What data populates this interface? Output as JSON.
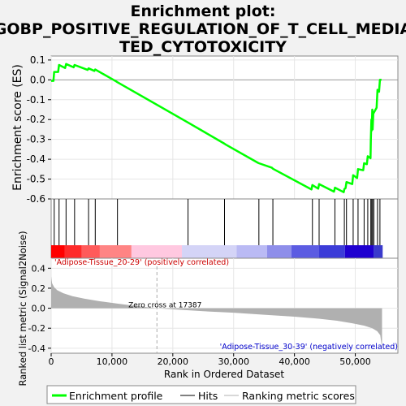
{
  "chart_data": {
    "type": "line",
    "title": "Enrichment plot: GOBP_POSITIVE_REGULATION_OF_T_CELL_MEDIATED_CYTOTOXICITY",
    "title_lines": [
      "Enrichment plot:",
      "GOBP_POSITIVE_REGULATION_OF_T_CELL_MEDIA",
      "TED_CYTOTOXICITY"
    ],
    "xlabel": "Rank in Ordered Dataset",
    "xlim": [
      0,
      57000
    ],
    "x_ticks": [
      0,
      10000,
      20000,
      30000,
      40000,
      50000
    ],
    "x_tick_labels": [
      "0",
      "10,000",
      "20,000",
      "30,000",
      "40,000",
      "50,000"
    ],
    "es_panel": {
      "ylabel": "Enrichment score (ES)",
      "ylim": [
        -0.6,
        0.12
      ],
      "y_ticks": [
        0.1,
        0.0,
        -0.1,
        -0.2,
        -0.3,
        -0.4,
        -0.5,
        -0.6
      ],
      "y_tick_labels": [
        "0.1",
        "0.0",
        "-0.1",
        "-0.2",
        "-0.3",
        "-0.4",
        "-0.5",
        "-0.6"
      ],
      "series": [
        {
          "name": "Enrichment profile",
          "color": "#00ff00",
          "x": [
            0,
            380,
            500,
            1150,
            1300,
            2300,
            2450,
            3700,
            3850,
            6000,
            6150,
            7100,
            7250,
            10700,
            10900,
            22500,
            28500,
            28650,
            34000,
            34150,
            36300,
            36450,
            42800,
            42950,
            43900,
            44050,
            46500,
            46650,
            48100,
            48200,
            48400,
            48550,
            49500,
            49650,
            50300,
            50450,
            51300,
            51450,
            51900,
            52050,
            52500,
            52550,
            52650,
            52700,
            52800,
            52850,
            52950,
            53050,
            53500,
            53650,
            53900,
            54050,
            54300
          ],
          "y": [
            -0.005,
            -0.005,
            0.04,
            0.04,
            0.075,
            0.06,
            0.08,
            0.063,
            0.075,
            0.05,
            0.058,
            0.045,
            0.052,
            -0.008,
            -0.012,
            -0.215,
            -0.322,
            -0.325,
            -0.418,
            -0.42,
            -0.443,
            -0.448,
            -0.552,
            -0.53,
            -0.548,
            -0.525,
            -0.563,
            -0.543,
            -0.566,
            -0.55,
            -0.545,
            -0.515,
            -0.525,
            -0.48,
            -0.495,
            -0.45,
            -0.455,
            -0.42,
            -0.425,
            -0.385,
            -0.395,
            -0.3,
            -0.2,
            -0.255,
            -0.15,
            -0.25,
            -0.17,
            -0.165,
            -0.14,
            -0.05,
            -0.06,
            0.0,
            0.0
          ]
        }
      ]
    },
    "hits": {
      "name": "Hits",
      "color": "#000000",
      "x": [
        500,
        1300,
        2450,
        3850,
        6150,
        7250,
        10900,
        22500,
        28500,
        34150,
        36450,
        42950,
        44050,
        46650,
        48200,
        48550,
        49650,
        50450,
        51450,
        52050,
        52550,
        52700,
        52850,
        53050,
        53650,
        54050
      ]
    },
    "metric_panel": {
      "ylabel": "Ranked list metric (Signal2Noise)",
      "ylim": [
        -0.45,
        0.5
      ],
      "y_ticks": [
        0.4,
        0.2,
        0.0,
        -0.2,
        -0.4
      ],
      "y_tick_labels": [
        "0.4",
        "0.2",
        "0.0",
        "-0.2",
        "-0.4"
      ],
      "zero_cross": 17387,
      "zero_cross_label": "Zero cross at 17387",
      "positive_label": "'Adipose-Tissue_20-29' (positively correlated)",
      "negative_label": "'Adipose-Tissue_30-39' (negatively correlated)",
      "metric_curve": {
        "name": "Ranking metric scores",
        "color": "#b0b0b0",
        "x": [
          0,
          150,
          500,
          1000,
          2000,
          3500,
          5500,
          8000,
          11000,
          14000,
          17387,
          21000,
          25000,
          30000,
          35000,
          40000,
          44000,
          47000,
          49500,
          51500,
          52800,
          53600,
          54100,
          54400
        ],
        "y": [
          0.32,
          0.25,
          0.21,
          0.18,
          0.15,
          0.12,
          0.095,
          0.07,
          0.045,
          0.022,
          0.0,
          -0.015,
          -0.03,
          -0.045,
          -0.065,
          -0.085,
          -0.105,
          -0.125,
          -0.15,
          -0.175,
          -0.2,
          -0.23,
          -0.27,
          -0.4
        ]
      }
    },
    "color_strip": [
      {
        "from": 0,
        "to": 2200,
        "color": "#ff0000"
      },
      {
        "from": 2200,
        "to": 5000,
        "color": "#ff2a2a"
      },
      {
        "from": 5000,
        "to": 8000,
        "color": "#ff5a5a"
      },
      {
        "from": 8000,
        "to": 13200,
        "color": "#ff8484"
      },
      {
        "from": 13200,
        "to": 21500,
        "color": "#ffc8e0"
      },
      {
        "from": 21500,
        "to": 30500,
        "color": "#d4d4f7"
      },
      {
        "from": 30500,
        "to": 35500,
        "color": "#babaf4"
      },
      {
        "from": 35500,
        "to": 39500,
        "color": "#8e8eea"
      },
      {
        "from": 39500,
        "to": 44000,
        "color": "#5c5ce2"
      },
      {
        "from": 44000,
        "to": 48300,
        "color": "#3c3cd8"
      },
      {
        "from": 48300,
        "to": 53000,
        "color": "#1f00d0"
      },
      {
        "from": 53000,
        "to": 54500,
        "color": "#3a3acc"
      }
    ],
    "legend": {
      "placement": "bottom",
      "items": [
        {
          "label": "Enrichment profile",
          "color": "#00ff00"
        },
        {
          "label": "Hits",
          "color": "#000000"
        },
        {
          "label": "Ranking metric scores",
          "color": "#b0b0b0"
        }
      ]
    }
  }
}
